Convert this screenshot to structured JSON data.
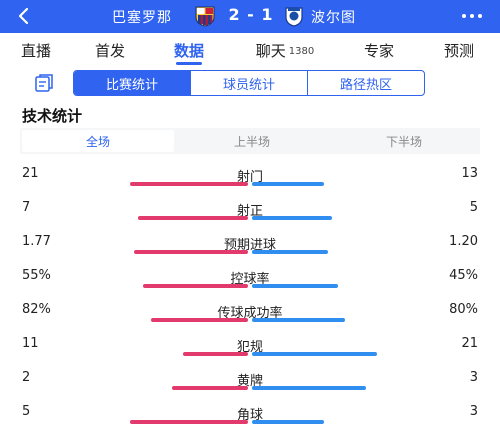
{
  "header": {
    "home_team": "巴塞罗那",
    "away_team": "波尔图",
    "score": "2 - 1",
    "colors": {
      "bar_bg": "#2f63f0",
      "home_stat": "#e33a6e",
      "away_stat": "#2f8ef0"
    },
    "icons": {
      "back": "back-arrow-icon",
      "home_crest": "barcelona-crest-icon",
      "away_crest": "porto-crest-icon",
      "more": "more-dots-icon"
    }
  },
  "nav": {
    "tabs": [
      {
        "label": "直播",
        "count": ""
      },
      {
        "label": "首发",
        "count": ""
      },
      {
        "label": "数据",
        "count": "",
        "active": true
      },
      {
        "label": "聊天",
        "count": "1380"
      },
      {
        "label": "专家",
        "count": ""
      },
      {
        "label": "预测",
        "count": ""
      }
    ]
  },
  "subtabs": [
    "比赛统计",
    "球员统计",
    "路径热区"
  ],
  "section_title": "技术统计",
  "periods": [
    "全场",
    "上半场",
    "下半场"
  ],
  "stats": [
    {
      "name": "射门",
      "home": "21",
      "away": "13",
      "home_ratio": 0.62,
      "away_ratio": 0.38
    },
    {
      "name": "射正",
      "home": "7",
      "away": "5",
      "home_ratio": 0.58,
      "away_ratio": 0.42
    },
    {
      "name": "预期进球",
      "home": "1.77",
      "away": "1.20",
      "home_ratio": 0.6,
      "away_ratio": 0.4
    },
    {
      "name": "控球率",
      "home": "55%",
      "away": "45%",
      "home_ratio": 0.55,
      "away_ratio": 0.45
    },
    {
      "name": "传球成功率",
      "home": "82%",
      "away": "80%",
      "home_ratio": 0.51,
      "away_ratio": 0.49
    },
    {
      "name": "犯规",
      "home": "11",
      "away": "21",
      "home_ratio": 0.34,
      "away_ratio": 0.66
    },
    {
      "name": "黄牌",
      "home": "2",
      "away": "3",
      "home_ratio": 0.4,
      "away_ratio": 0.6
    },
    {
      "name": "角球",
      "home": "5",
      "away": "3",
      "home_ratio": 0.62,
      "away_ratio": 0.38
    }
  ]
}
